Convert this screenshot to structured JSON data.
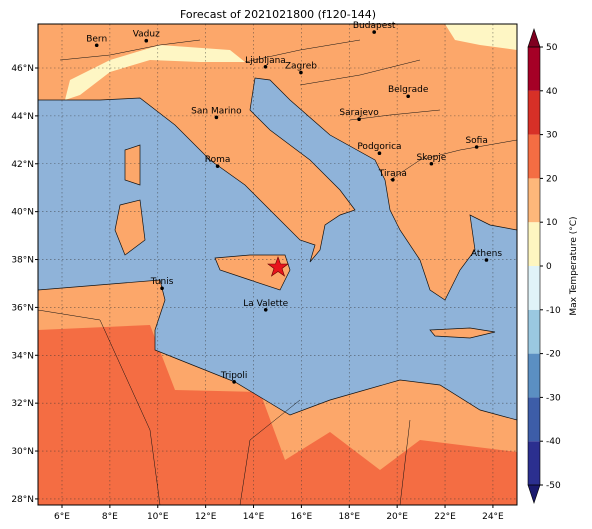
{
  "title": "Forecast of 2021021800 (f120-144)",
  "map": {
    "xticks": [
      {
        "value": 6,
        "label": "6°E"
      },
      {
        "value": 8,
        "label": "8°E"
      },
      {
        "value": 10,
        "label": "10°E"
      },
      {
        "value": 12,
        "label": "12°E"
      },
      {
        "value": 14,
        "label": "14°E"
      },
      {
        "value": 16,
        "label": "16°E"
      },
      {
        "value": 18,
        "label": "18°E"
      },
      {
        "value": 20,
        "label": "20°E"
      },
      {
        "value": 22,
        "label": "22°E"
      },
      {
        "value": 24,
        "label": "24°E"
      }
    ],
    "yticks": [
      {
        "value": 28,
        "label": "28°N"
      },
      {
        "value": 30,
        "label": "30°N"
      },
      {
        "value": 32,
        "label": "32°N"
      },
      {
        "value": 34,
        "label": "34°N"
      },
      {
        "value": 36,
        "label": "36°N"
      },
      {
        "value": 38,
        "label": "38°N"
      },
      {
        "value": 40,
        "label": "40°N"
      },
      {
        "value": 42,
        "label": "42°N"
      },
      {
        "value": 44,
        "label": "44°N"
      },
      {
        "value": 46,
        "label": "46°N"
      }
    ],
    "grid": true,
    "cities": [
      {
        "name": "Bern",
        "lon": 7.45,
        "lat": 46.95
      },
      {
        "name": "Vaduz",
        "lon": 9.52,
        "lat": 47.14
      },
      {
        "name": "Budapest",
        "lon": 19.04,
        "lat": 47.5
      },
      {
        "name": "Ljubljana",
        "lon": 14.5,
        "lat": 46.05
      },
      {
        "name": "Zagreb",
        "lon": 15.98,
        "lat": 45.81
      },
      {
        "name": "Belgrade",
        "lon": 20.46,
        "lat": 44.82
      },
      {
        "name": "San Marino",
        "lon": 12.45,
        "lat": 43.94
      },
      {
        "name": "Sarajevo",
        "lon": 18.41,
        "lat": 43.86
      },
      {
        "name": "Sofia",
        "lon": 23.32,
        "lat": 42.7
      },
      {
        "name": "Podgorica",
        "lon": 19.26,
        "lat": 42.44
      },
      {
        "name": "Skopje",
        "lon": 21.43,
        "lat": 42.0
      },
      {
        "name": "Roma",
        "lon": 12.5,
        "lat": 41.9
      },
      {
        "name": "Tirana",
        "lon": 19.82,
        "lat": 41.33
      },
      {
        "name": "Athens",
        "lon": 23.73,
        "lat": 37.98
      },
      {
        "name": "Tunis",
        "lon": 10.18,
        "lat": 36.8
      },
      {
        "name": "La Valette",
        "lon": 14.51,
        "lat": 35.9
      },
      {
        "name": "Tripoli",
        "lon": 13.19,
        "lat": 32.89
      }
    ]
  },
  "colorbar": {
    "label": "Max Temperature (°C)",
    "lim": [
      -50,
      50
    ],
    "ticks": [
      -50,
      -40,
      -30,
      -20,
      -10,
      0,
      10,
      20,
      30,
      40,
      50
    ],
    "colors": [
      "#2b2f8f",
      "#3d5da8",
      "#5b8fc2",
      "#9ac8e0",
      "#e0f3f8",
      "#fef6c0",
      "#fdb77a",
      "#f46d43",
      "#d73027",
      "#a50026"
    ],
    "under_color": "#1a1a6e",
    "over_color": "#7f0020"
  }
}
